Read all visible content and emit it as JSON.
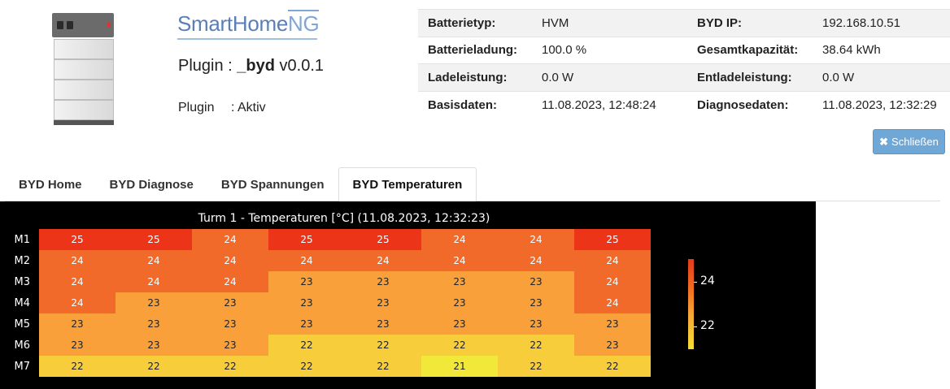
{
  "logo": {
    "smart": "SmartHome",
    "ng": "NG"
  },
  "plugin": {
    "prefix": "Plugin : ",
    "name": "_byd",
    "version": " v0.0.1",
    "status_label": "Plugin",
    "status_value": ": Aktiv"
  },
  "info": [
    {
      "k1": "Batterietyp:",
      "v1": "HVM",
      "k2": "BYD IP:",
      "v2": "192.168.10.51"
    },
    {
      "k1": "Batterieladung:",
      "v1": "100.0 %",
      "k2": "Gesamtkapazität:",
      "v2": "38.64 kWh"
    },
    {
      "k1": "Ladeleistung:",
      "v1": "0.0 W",
      "k2": "Entladeleistung:",
      "v2": "0.0 W"
    },
    {
      "k1": "Basisdaten:",
      "v1": "11.08.2023, 12:48:24",
      "k2": "Diagnosedaten:",
      "v2": "11.08.2023, 12:32:29"
    }
  ],
  "close_button": {
    "icon": "close-icon",
    "label": "Schließen"
  },
  "tabs": [
    {
      "label": "BYD Home",
      "active": false
    },
    {
      "label": "BYD Diagnose",
      "active": false
    },
    {
      "label": "BYD Spannungen",
      "active": false
    },
    {
      "label": "BYD Temperaturen",
      "active": true
    }
  ],
  "colors": {
    "t21": "#f2e83a",
    "t22": "#f7cd3c",
    "t23": "#f9a03a",
    "t24": "#f26a2a",
    "t25": "#ec3418",
    "button": "#6fa8d6"
  },
  "chart_data": {
    "type": "heatmap",
    "title": "Turm 1 - Temperaturen [°C] (11.08.2023, 12:32:23)",
    "rows": [
      "M1",
      "M2",
      "M3",
      "M4",
      "M5",
      "M6",
      "M7"
    ],
    "values": [
      [
        25,
        25,
        24,
        25,
        25,
        24,
        24,
        25
      ],
      [
        24,
        24,
        24,
        24,
        24,
        24,
        24,
        24
      ],
      [
        24,
        24,
        24,
        23,
        23,
        23,
        23,
        24
      ],
      [
        24,
        23,
        23,
        23,
        23,
        23,
        23,
        24
      ],
      [
        23,
        23,
        23,
        23,
        23,
        23,
        23,
        23
      ],
      [
        23,
        23,
        23,
        22,
        22,
        22,
        22,
        23
      ],
      [
        22,
        22,
        22,
        22,
        22,
        21,
        22,
        22
      ]
    ],
    "colorbar": {
      "range": [
        21,
        25
      ],
      "ticks": [
        24,
        22
      ]
    }
  }
}
